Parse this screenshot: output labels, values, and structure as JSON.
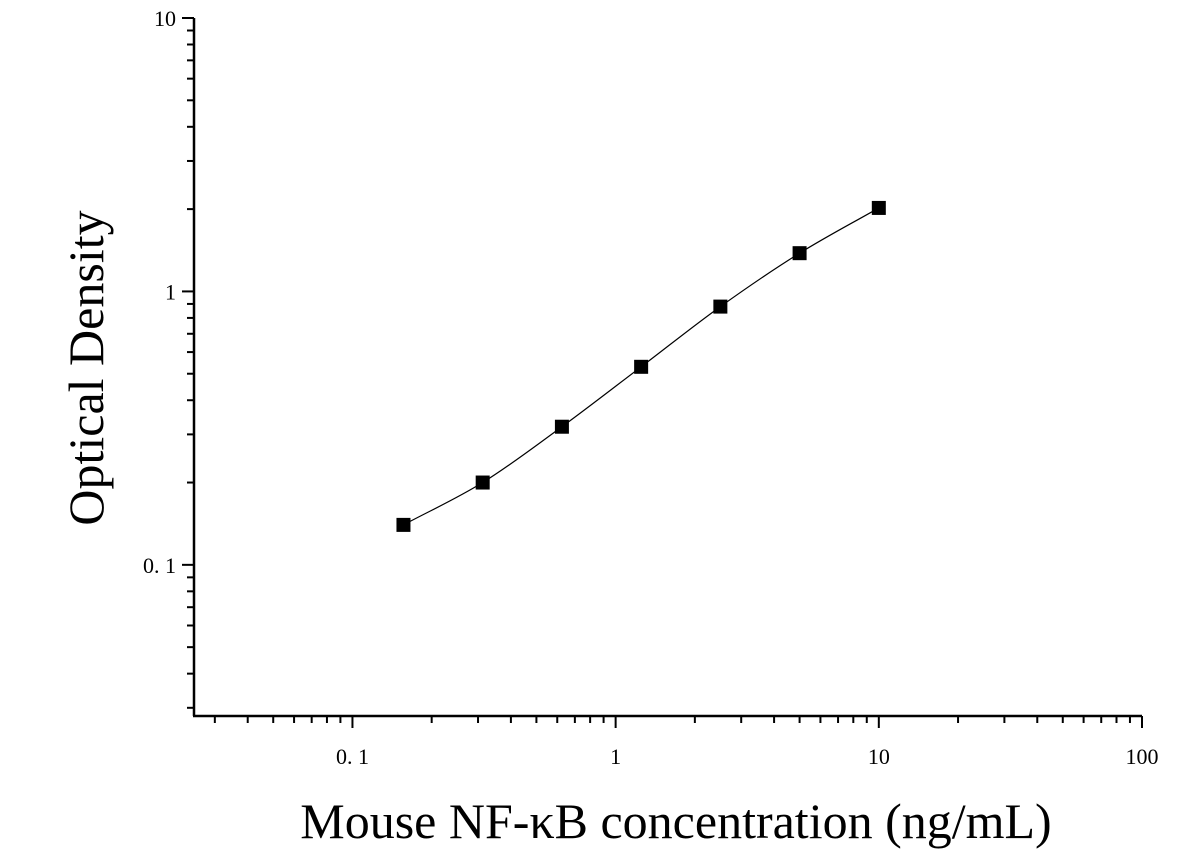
{
  "chart_data": {
    "type": "scatter",
    "xlabel": "Mouse NF-κB concentration (ng/mL)",
    "ylabel": "Optical Density",
    "xscale": "log",
    "yscale": "log",
    "xlim": [
      0.025,
      100
    ],
    "ylim": [
      0.028,
      10
    ],
    "xticks": [
      {
        "value": 0.1,
        "label": "0. 1"
      },
      {
        "value": 1,
        "label": "1"
      },
      {
        "value": 10,
        "label": "10"
      },
      {
        "value": 100,
        "label": "100"
      }
    ],
    "yticks": [
      {
        "value": 0.1,
        "label": "0. 1"
      },
      {
        "value": 1,
        "label": "1"
      },
      {
        "value": 10,
        "label": "10"
      }
    ],
    "grid": false,
    "legend": "none",
    "marker_color": "#000000",
    "line_color": "#000000",
    "points": [
      {
        "x": 0.15625,
        "y": 0.14
      },
      {
        "x": 0.3125,
        "y": 0.2
      },
      {
        "x": 0.625,
        "y": 0.32
      },
      {
        "x": 1.25,
        "y": 0.53
      },
      {
        "x": 2.5,
        "y": 0.88
      },
      {
        "x": 5,
        "y": 1.38
      },
      {
        "x": 10,
        "y": 2.02
      }
    ]
  }
}
